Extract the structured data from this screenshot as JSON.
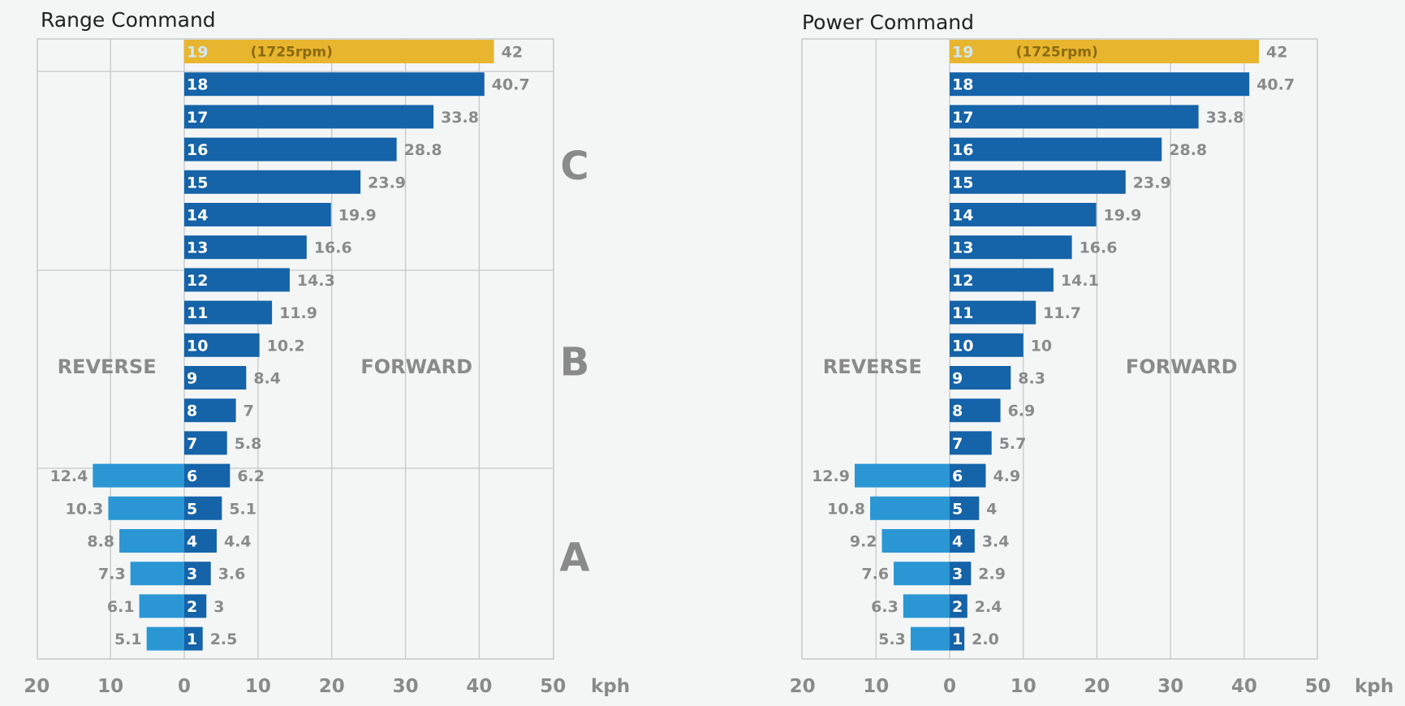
{
  "colors": {
    "forward": "#1563a8",
    "reverse": "#2a97d4",
    "top_gear": "#e8b52e",
    "grid": "#c4c8c8",
    "text": "#8a8a8a"
  },
  "chart_data": [
    {
      "type": "bar",
      "title": "Range Command",
      "unit_label": "kph",
      "direction_labels": {
        "reverse": "REVERSE",
        "forward": "FORWARD"
      },
      "x_ticks": [
        "20",
        "10",
        "0",
        "10",
        "20",
        "30",
        "40",
        "50"
      ],
      "xlim": [
        -20,
        50
      ],
      "range_groups": [
        {
          "label": "C",
          "gears": [
            13,
            18
          ]
        },
        {
          "label": "B",
          "gears": [
            7,
            12
          ]
        },
        {
          "label": "A",
          "gears": [
            1,
            6
          ]
        }
      ],
      "top_gear_note": "(1725rpm)",
      "categories": [
        "19",
        "18",
        "17",
        "16",
        "15",
        "14",
        "13",
        "12",
        "11",
        "10",
        "9",
        "8",
        "7",
        "6",
        "5",
        "4",
        "3",
        "2",
        "1"
      ],
      "forward": [
        42,
        40.7,
        33.8,
        28.8,
        23.9,
        19.9,
        16.6,
        14.3,
        11.9,
        10.2,
        8.4,
        7,
        5.8,
        6.2,
        5.1,
        4.4,
        3.6,
        3,
        2.5
      ],
      "forward_labels": [
        "42",
        "40.7",
        "33.8",
        "28.8",
        "23.9",
        "19.9",
        "16.6",
        "14.3",
        "11.9",
        "10.2",
        "8.4",
        "7",
        "5.8",
        "6.2",
        "5.1",
        "4.4",
        "3.6",
        "3",
        "2.5"
      ],
      "reverse": [
        null,
        null,
        null,
        null,
        null,
        null,
        null,
        null,
        null,
        null,
        null,
        null,
        null,
        12.4,
        10.3,
        8.8,
        7.3,
        6.1,
        5.1
      ],
      "reverse_labels": [
        "",
        "",
        "",
        "",
        "",
        "",
        "",
        "",
        "",
        "",
        "",
        "",
        "",
        "12.4",
        "10.3",
        "8.8",
        "7.3",
        "6.1",
        "5.1"
      ]
    },
    {
      "type": "bar",
      "title": "Power Command",
      "unit_label": "kph",
      "direction_labels": {
        "reverse": "REVERSE",
        "forward": "FORWARD"
      },
      "x_ticks": [
        "20",
        "10",
        "0",
        "10",
        "20",
        "30",
        "40",
        "50"
      ],
      "xlim": [
        -20,
        50
      ],
      "range_groups": [],
      "top_gear_note": "(1725rpm)",
      "categories": [
        "19",
        "18",
        "17",
        "16",
        "15",
        "14",
        "13",
        "12",
        "11",
        "10",
        "9",
        "8",
        "7",
        "6",
        "5",
        "4",
        "3",
        "2",
        "1"
      ],
      "forward": [
        42,
        40.7,
        33.8,
        28.8,
        23.9,
        19.9,
        16.6,
        14.1,
        11.7,
        10,
        8.3,
        6.9,
        5.7,
        4.9,
        4,
        3.4,
        2.9,
        2.4,
        2.0
      ],
      "forward_labels": [
        "42",
        "40.7",
        "33.8",
        "28.8",
        "23.9",
        "19.9",
        "16.6",
        "14.1",
        "11.7",
        "10",
        "8.3",
        "6.9",
        "5.7",
        "4.9",
        "4",
        "3.4",
        "2.9",
        "2.4",
        "2.0"
      ],
      "reverse": [
        null,
        null,
        null,
        null,
        null,
        null,
        null,
        null,
        null,
        null,
        null,
        null,
        null,
        12.9,
        10.8,
        9.2,
        7.6,
        6.3,
        5.3
      ],
      "reverse_labels": [
        "",
        "",
        "",
        "",
        "",
        "",
        "",
        "",
        "",
        "",
        "",
        "",
        "",
        "12.9",
        "10.8",
        "9.2",
        "7.6",
        "6.3",
        "5.3"
      ]
    }
  ]
}
